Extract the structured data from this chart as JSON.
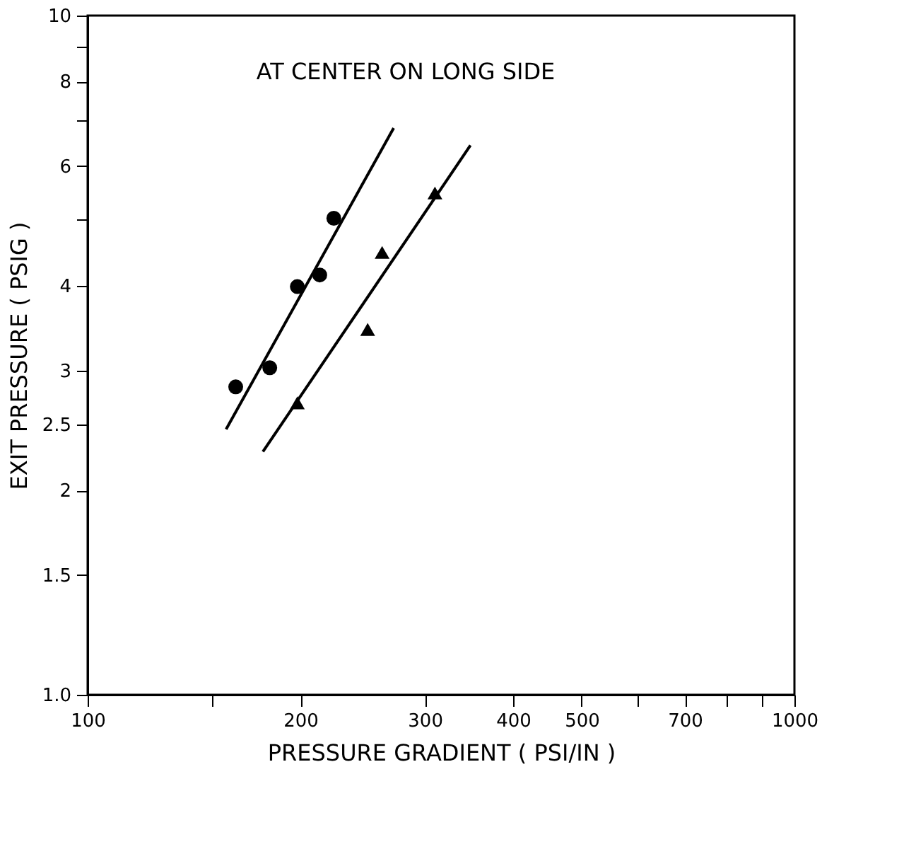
{
  "chart_data": {
    "type": "scatter",
    "xlabel": "PRESSURE GRADIENT ( PSI/IN )",
    "ylabel": "EXIT PRESSURE ( PSIG )",
    "annotations": [
      "AT CENTER ON LONG SIDE"
    ],
    "log": "xy",
    "grid": false,
    "xlim": [
      100,
      1000
    ],
    "ylim": [
      1,
      10
    ],
    "xticks": [
      100,
      {
        "value": 150,
        "label": null
      },
      200,
      300,
      400,
      500,
      {
        "value": 600,
        "label": null
      },
      700,
      {
        "value": 800,
        "label": null
      },
      {
        "value": 900,
        "label": null
      },
      1000
    ],
    "yticks": [
      {
        "value": 1,
        "label": "1.0"
      },
      1.5,
      2,
      2.5,
      3,
      4,
      {
        "value": 5,
        "label": null
      },
      6,
      {
        "value": 7,
        "label": null
      },
      8,
      {
        "value": 9,
        "label": null
      },
      10
    ],
    "series": [
      {
        "type": "scatter",
        "marker": "circle",
        "color": "#000000",
        "x": [
          162,
          181,
          198,
          213,
          223
        ],
        "values": [
          2.84,
          3.03,
          3.99,
          4.15,
          5.03
        ]
      },
      {
        "type": "scatter",
        "marker": "triangle",
        "color": "#000000",
        "x": [
          198,
          249,
          261,
          310
        ],
        "values": [
          2.69,
          3.45,
          4.48,
          5.48
        ]
      },
      {
        "type": "line",
        "line_style": "solid",
        "color": "#000000",
        "x": [
          157,
          271
        ],
        "values": [
          2.46,
          6.83
        ]
      },
      {
        "type": "line",
        "line_style": "solid",
        "color": "#000000",
        "x": [
          177,
          348
        ],
        "values": [
          2.28,
          6.44
        ]
      }
    ]
  }
}
